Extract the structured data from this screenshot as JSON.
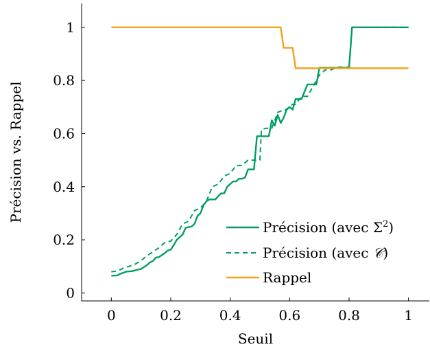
{
  "chart_data": {
    "type": "line",
    "xlabel": "Seuil",
    "ylabel": "Précision vs. Rappel",
    "xlim": [
      -0.1,
      1.07
    ],
    "ylim": [
      -0.03,
      1.09
    ],
    "xticks": [
      {
        "value": 0,
        "label": "0"
      },
      {
        "value": 0.2,
        "label": "0.2"
      },
      {
        "value": 0.4,
        "label": "0.4"
      },
      {
        "value": 0.6,
        "label": "0.6"
      },
      {
        "value": 0.8,
        "label": "0.8"
      },
      {
        "value": 1,
        "label": "1"
      }
    ],
    "yticks": [
      {
        "value": 0,
        "label": "0"
      },
      {
        "value": 0.2,
        "label": "0.2"
      },
      {
        "value": 0.4,
        "label": "0.4"
      },
      {
        "value": 0.6,
        "label": "0.6"
      },
      {
        "value": 0.8,
        "label": "0.8"
      },
      {
        "value": 1,
        "label": "1"
      }
    ],
    "legend_position": "bottom-right",
    "grid": false,
    "series": [
      {
        "name": "Précision (avec Σ²)",
        "color": "#009e60",
        "style": "solid",
        "x": [
          0,
          0.02,
          0.03,
          0.05,
          0.07,
          0.09,
          0.1,
          0.12,
          0.13,
          0.14,
          0.15,
          0.16,
          0.18,
          0.19,
          0.2,
          0.21,
          0.22,
          0.23,
          0.24,
          0.25,
          0.26,
          0.27,
          0.28,
          0.29,
          0.3,
          0.31,
          0.32,
          0.33,
          0.34,
          0.35,
          0.36,
          0.37,
          0.38,
          0.39,
          0.4,
          0.41,
          0.42,
          0.43,
          0.44,
          0.45,
          0.46,
          0.47,
          0.48,
          0.49,
          0.5,
          0.505,
          0.51,
          0.52,
          0.53,
          0.54,
          0.55,
          0.56,
          0.57,
          0.58,
          0.59,
          0.6,
          0.61,
          0.62,
          0.63,
          0.64,
          0.66,
          0.67,
          0.69,
          0.7,
          0.71,
          0.73,
          0.75,
          0.77,
          0.79,
          0.8,
          0.81,
          1
        ],
        "y": [
          0.065,
          0.066,
          0.072,
          0.08,
          0.082,
          0.088,
          0.09,
          0.105,
          0.115,
          0.12,
          0.133,
          0.135,
          0.15,
          0.16,
          0.163,
          0.18,
          0.2,
          0.21,
          0.22,
          0.245,
          0.248,
          0.25,
          0.26,
          0.29,
          0.3,
          0.33,
          0.345,
          0.352,
          0.352,
          0.352,
          0.365,
          0.375,
          0.375,
          0.4,
          0.41,
          0.42,
          0.42,
          0.43,
          0.43,
          0.435,
          0.465,
          0.465,
          0.465,
          0.59,
          0.59,
          0.59,
          0.59,
          0.59,
          0.59,
          0.65,
          0.63,
          0.67,
          0.64,
          0.66,
          0.69,
          0.7,
          0.69,
          0.73,
          0.73,
          0.73,
          0.785,
          0.785,
          0.785,
          0.848,
          0.848,
          0.848,
          0.848,
          0.848,
          0.848,
          0.848,
          1.0,
          1.0
        ]
      },
      {
        "name": "Précision (avec 𝒞)",
        "color": "#009e60",
        "style": "dashed",
        "x": [
          0,
          0.02,
          0.04,
          0.06,
          0.08,
          0.1,
          0.12,
          0.14,
          0.16,
          0.18,
          0.2,
          0.22,
          0.24,
          0.26,
          0.28,
          0.3,
          0.32,
          0.34,
          0.36,
          0.38,
          0.4,
          0.42,
          0.44,
          0.46,
          0.48,
          0.5,
          0.505,
          0.52,
          0.54,
          0.56,
          0.57,
          0.58,
          0.6,
          0.61,
          0.62,
          0.64,
          0.66,
          0.68,
          0.7,
          0.72,
          0.74,
          0.76,
          0.78,
          0.8,
          0.81,
          1
        ],
        "y": [
          0.08,
          0.082,
          0.093,
          0.1,
          0.108,
          0.122,
          0.14,
          0.155,
          0.17,
          0.19,
          0.195,
          0.22,
          0.26,
          0.27,
          0.31,
          0.32,
          0.345,
          0.4,
          0.41,
          0.44,
          0.45,
          0.48,
          0.48,
          0.5,
          0.5,
          0.5,
          0.615,
          0.62,
          0.62,
          0.68,
          0.685,
          0.685,
          0.7,
          0.71,
          0.71,
          0.74,
          0.74,
          0.78,
          0.82,
          0.84,
          0.84,
          0.85,
          0.85,
          0.85,
          1.0,
          1.0
        ]
      },
      {
        "name": "Rappel",
        "color": "#f5a01a",
        "style": "solid",
        "x": [
          0,
          0.57,
          0.58,
          0.6,
          0.61,
          0.62,
          1
        ],
        "y": [
          1.0,
          1.0,
          0.923,
          0.923,
          0.923,
          0.846,
          0.846
        ]
      }
    ]
  },
  "legend": {
    "items": [
      {
        "label_main": "Précision (avec ",
        "symbol": "Σ",
        "superscript": "2",
        "label_end": ")"
      },
      {
        "label_main": "Précision (avec ",
        "symbol": "𝒞",
        "superscript": "",
        "label_end": ")"
      },
      {
        "label_main": "Rappel",
        "symbol": "",
        "superscript": "",
        "label_end": ""
      }
    ]
  }
}
